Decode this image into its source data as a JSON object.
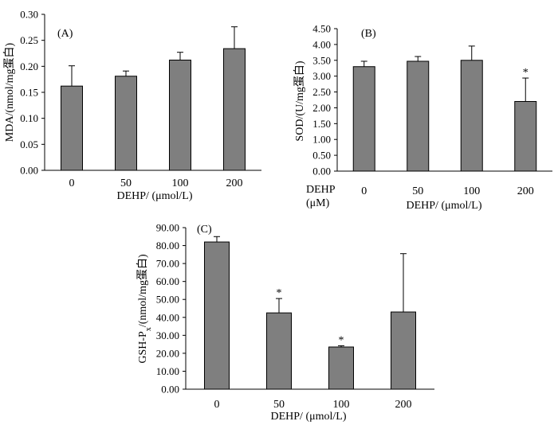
{
  "chart_data": [
    {
      "id": "A",
      "type": "bar",
      "panel_label": "(A)",
      "categories": [
        "0",
        "50",
        "100",
        "200"
      ],
      "values": [
        0.162,
        0.181,
        0.212,
        0.234
      ],
      "errors": [
        0.039,
        0.01,
        0.015,
        0.042
      ],
      "significance": [
        "",
        "",
        "",
        ""
      ],
      "ylabel": "MDA/(nmol/mg蛋白)",
      "xlabel": "DEHP/ (μmol/L)",
      "ylim": [
        0,
        0.3
      ],
      "yticks": [
        "0.00",
        "0.05",
        "0.10",
        "0.15",
        "0.20",
        "0.25",
        "0.30"
      ]
    },
    {
      "id": "B",
      "type": "bar",
      "panel_label": "(B)",
      "categories": [
        "0",
        "50",
        "100",
        "200"
      ],
      "values": [
        3.3,
        3.47,
        3.5,
        2.2
      ],
      "errors": [
        0.17,
        0.15,
        0.45,
        0.74
      ],
      "significance": [
        "",
        "",
        "",
        "*"
      ],
      "ylabel": "SOD/(U/mg蛋白)",
      "xlabel": "DEHP/ (μmol/L)",
      "xaxis_title_lines": [
        "DEHP",
        "(μM)"
      ],
      "ylim": [
        0,
        4.5
      ],
      "yticks": [
        "0.00",
        "0.50",
        "1.00",
        "1.50",
        "2.00",
        "2.50",
        "3.00",
        "3.50",
        "4.00",
        "4.50"
      ]
    },
    {
      "id": "C",
      "type": "bar",
      "panel_label": "(C)",
      "categories": [
        "0",
        "50",
        "100",
        "200"
      ],
      "values": [
        82.0,
        42.5,
        23.5,
        43.0
      ],
      "errors": [
        3.0,
        8.0,
        0.7,
        32.5
      ],
      "significance": [
        "",
        "*",
        "*",
        ""
      ],
      "ylabel": "GSH-Px/(nmol/mg蛋白)",
      "ylabel_main": "GSH-P",
      "ylabel_sub": "x",
      "ylabel_rest": "/(nmol/mg蛋白)",
      "xlabel": "DEHP/ (μmol/L)",
      "ylim": [
        0,
        90
      ],
      "yticks": [
        "0.00",
        "10.00",
        "20.00",
        "30.00",
        "40.00",
        "50.00",
        "60.00",
        "70.00",
        "80.00",
        "90.00"
      ]
    }
  ]
}
